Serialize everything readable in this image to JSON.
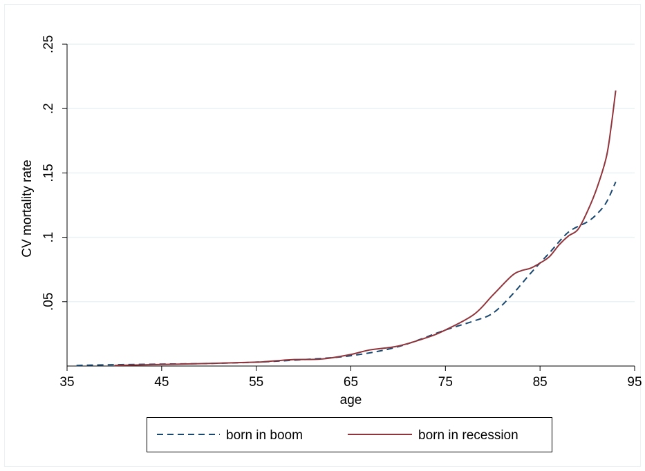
{
  "chart_data": {
    "type": "line",
    "xlabel": "age",
    "ylabel": "CV mortality rate",
    "xlim": [
      35,
      95
    ],
    "ylim": [
      0,
      0.25
    ],
    "xticks": [
      {
        "value": 35,
        "label": "35"
      },
      {
        "value": 45,
        "label": "45"
      },
      {
        "value": 55,
        "label": "55"
      },
      {
        "value": 65,
        "label": "65"
      },
      {
        "value": 75,
        "label": "75"
      },
      {
        "value": 85,
        "label": "85"
      },
      {
        "value": 95,
        "label": "95"
      }
    ],
    "yticks": [
      {
        "value": 0.05,
        "label": ".05"
      },
      {
        "value": 0.1,
        "label": ".1"
      },
      {
        "value": 0.15,
        "label": ".15"
      },
      {
        "value": 0.2,
        "label": ".2"
      },
      {
        "value": 0.25,
        "label": ".25"
      }
    ],
    "grid": true,
    "legend_position": "bottom",
    "series": [
      {
        "name": "born in boom",
        "color": "#1a476f",
        "style": "dashed",
        "x": [
          36,
          40,
          45,
          50,
          55,
          60,
          65,
          70,
          75,
          78,
          80,
          82,
          84,
          86,
          88,
          90,
          91,
          92,
          93
        ],
        "y": [
          0.0005,
          0.001,
          0.0015,
          0.002,
          0.003,
          0.005,
          0.008,
          0.015,
          0.028,
          0.035,
          0.041,
          0.055,
          0.072,
          0.088,
          0.104,
          0.112,
          0.118,
          0.127,
          0.143
        ]
      },
      {
        "name": "born in recession",
        "color": "#90353b",
        "style": "solid",
        "x": [
          40,
          45,
          50,
          55,
          57,
          59,
          62,
          65,
          67,
          70,
          73,
          75,
          78,
          80,
          82,
          83,
          84,
          85,
          86,
          87,
          88,
          89,
          90,
          91,
          92,
          92.5,
          93
        ],
        "y": [
          0.0005,
          0.0012,
          0.002,
          0.003,
          0.004,
          0.005,
          0.0055,
          0.009,
          0.0125,
          0.0155,
          0.022,
          0.028,
          0.04,
          0.055,
          0.07,
          0.074,
          0.076,
          0.08,
          0.085,
          0.094,
          0.101,
          0.106,
          0.12,
          0.138,
          0.162,
          0.185,
          0.214
        ]
      }
    ]
  }
}
